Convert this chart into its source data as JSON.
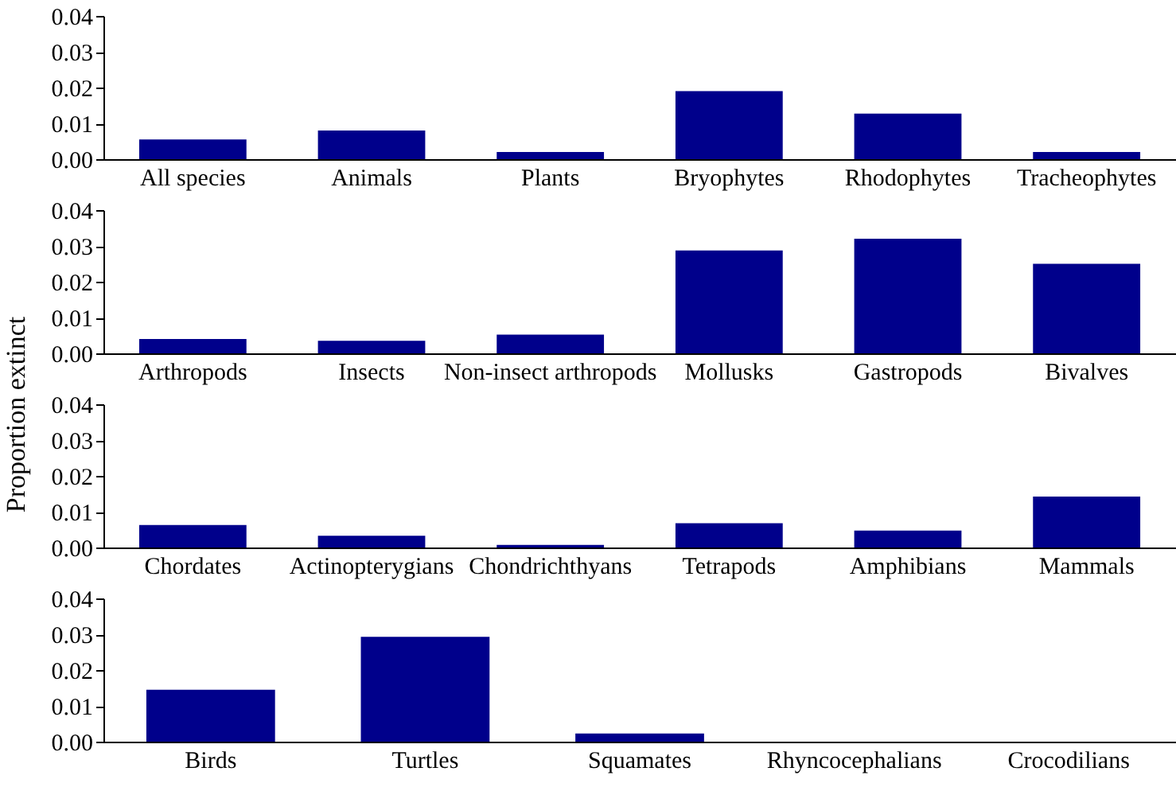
{
  "chart_data": [
    {
      "type": "bar",
      "categories": [
        "All species",
        "Animals",
        "Plants",
        "Bryophytes",
        "Rhodophytes",
        "Tracheophytes"
      ],
      "values": [
        0.0055,
        0.008,
        0.002,
        0.019,
        0.0127,
        0.002
      ],
      "color": "#00008b",
      "ylim": [
        0,
        0.04
      ],
      "yticks": [
        {
          "value": 0,
          "label": "0.00"
        },
        {
          "value": 0.01,
          "label": "0.01"
        },
        {
          "value": 0.02,
          "label": "0.02"
        },
        {
          "value": 0.03,
          "label": "0.03"
        },
        {
          "value": 0.04,
          "label": "0.04"
        }
      ],
      "grid": false
    },
    {
      "type": "bar",
      "ylabel": "Proportion extinct",
      "categories": [
        "Arthropods",
        "Insects",
        "Non-insect arthropods",
        "Mollusks",
        "Gastropods",
        "Bivalves"
      ],
      "values": [
        0.004,
        0.0035,
        0.0052,
        0.0287,
        0.032,
        0.025
      ],
      "color": "#00008b",
      "ylim": [
        0,
        0.04
      ],
      "yticks": [
        {
          "value": 0,
          "label": "0.00"
        },
        {
          "value": 0.01,
          "label": "0.01"
        },
        {
          "value": 0.02,
          "label": "0.02"
        },
        {
          "value": 0.03,
          "label": "0.03"
        },
        {
          "value": 0.04,
          "label": "0.04"
        }
      ],
      "grid": false
    },
    {
      "type": "bar",
      "categories": [
        "Chordates",
        "Actinopterygians",
        "Chondrichthyans",
        "Tetrapods",
        "Amphibians",
        "Mammals"
      ],
      "values": [
        0.0063,
        0.0033,
        0.0007,
        0.0068,
        0.0047,
        0.0142
      ],
      "color": "#00008b",
      "ylim": [
        0,
        0.04
      ],
      "yticks": [
        {
          "value": 0,
          "label": "0.00"
        },
        {
          "value": 0.01,
          "label": "0.01"
        },
        {
          "value": 0.02,
          "label": "0.02"
        },
        {
          "value": 0.03,
          "label": "0.03"
        },
        {
          "value": 0.04,
          "label": "0.04"
        }
      ],
      "grid": false
    },
    {
      "type": "bar",
      "categories": [
        "Birds",
        "Turtles",
        "Squamates",
        "Rhyncocephalians",
        "Crocodilians"
      ],
      "values": [
        0.0145,
        0.0293,
        0.0023,
        0,
        0
      ],
      "color": "#00008b",
      "ylim": [
        0,
        0.04
      ],
      "yticks": [
        {
          "value": 0,
          "label": "0.00"
        },
        {
          "value": 0.01,
          "label": "0.01"
        },
        {
          "value": 0.02,
          "label": "0.02"
        },
        {
          "value": 0.03,
          "label": "0.03"
        },
        {
          "value": 0.04,
          "label": "0.04"
        }
      ],
      "grid": false
    }
  ]
}
